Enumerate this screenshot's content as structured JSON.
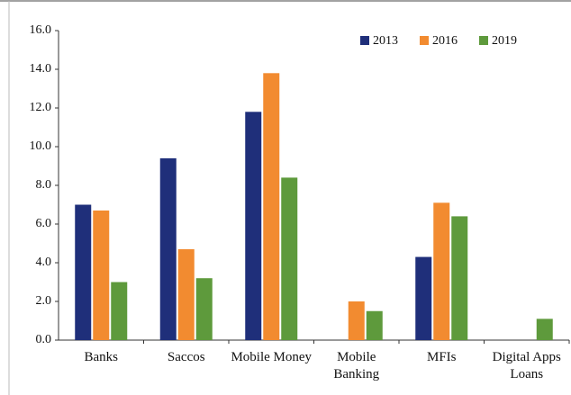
{
  "chart_data": {
    "type": "bar",
    "categories": [
      "Banks",
      "Saccos",
      "Mobile Money",
      "Mobile Banking",
      "MFIs",
      "Digital Apps Loans"
    ],
    "series": [
      {
        "name": "2013",
        "color": "#1f2f7a",
        "values": [
          7.0,
          9.4,
          11.8,
          null,
          4.3,
          null
        ]
      },
      {
        "name": "2016",
        "color": "#f28b30",
        "values": [
          6.7,
          4.7,
          13.8,
          2.0,
          7.1,
          null
        ]
      },
      {
        "name": "2019",
        "color": "#5e9a3c",
        "values": [
          3.0,
          3.2,
          8.4,
          1.5,
          6.4,
          1.1
        ]
      }
    ],
    "ylim": [
      0,
      16
    ],
    "yticks": [
      {
        "value": 0,
        "label": "0.0"
      },
      {
        "value": 2,
        "label": "2.0"
      },
      {
        "value": 4,
        "label": "4.0"
      },
      {
        "value": 6,
        "label": "6.0"
      },
      {
        "value": 8,
        "label": "8.0"
      },
      {
        "value": 10,
        "label": "10.0"
      },
      {
        "value": 12,
        "label": "12.0"
      },
      {
        "value": 14,
        "label": "14.0"
      },
      {
        "value": 16,
        "label": "16.0"
      }
    ],
    "grid": false,
    "legend": "upper right"
  }
}
